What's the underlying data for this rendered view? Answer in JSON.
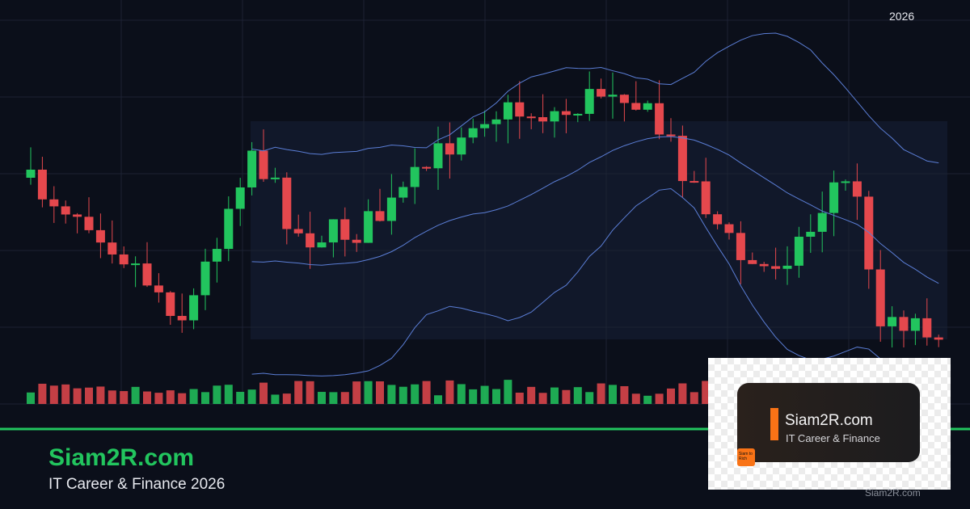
{
  "header": {
    "year": "2026"
  },
  "footer": {
    "title": "Siam2R.com",
    "subtitle": "IT Career & Finance 2026"
  },
  "card": {
    "title": "Siam2R.com",
    "subtitle": "IT Career & Finance",
    "logo": "Siam to Rich"
  },
  "watermark": "Siam2R.com"
}
